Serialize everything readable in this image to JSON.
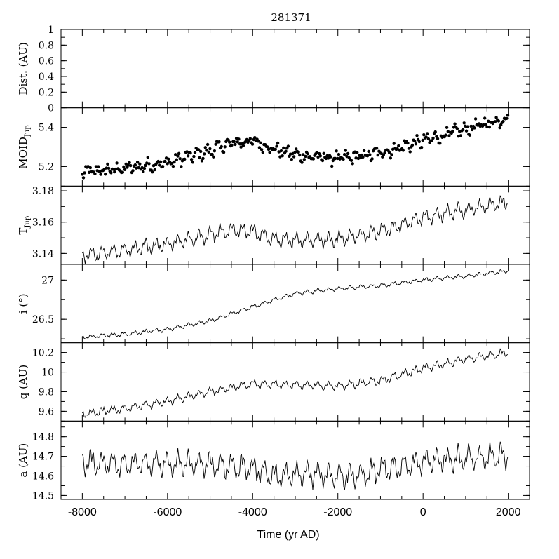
{
  "chart_data": {
    "type": "line",
    "title": "281371",
    "xlabel": "Time (yr AD)",
    "xlim": [
      -8500,
      2500
    ],
    "xticks": [
      -8000,
      -6000,
      -4000,
      -2000,
      0,
      2000
    ],
    "xtick_labels": [
      "-8000",
      "-6000",
      "-4000",
      "-2000",
      "0",
      "2000"
    ],
    "panels": [
      {
        "key": "dist",
        "ylabel": "Dist. (AU)",
        "ylim": [
          0,
          1
        ],
        "yticks": [
          0,
          0.2,
          0.4,
          0.6,
          0.8,
          1
        ],
        "ytick_labels": [
          "0",
          "0.2",
          "0.4",
          "0.6",
          "0.8",
          "1"
        ],
        "style": "none",
        "trend": []
      },
      {
        "key": "moid",
        "ylabel": "MOID",
        "ylabel_sub": "Jup",
        "ylim": [
          5.1,
          5.5
        ],
        "yticks": [
          5.2,
          5.4
        ],
        "ytick_labels": [
          "5.2",
          "5.4"
        ],
        "style": "scatter",
        "spread": 0.045,
        "trend": [
          [
            -8000,
            5.17
          ],
          [
            -7000,
            5.19
          ],
          [
            -6000,
            5.22
          ],
          [
            -5000,
            5.28
          ],
          [
            -4500,
            5.32
          ],
          [
            -4000,
            5.33
          ],
          [
            -3500,
            5.29
          ],
          [
            -3000,
            5.26
          ],
          [
            -2000,
            5.24
          ],
          [
            -1500,
            5.25
          ],
          [
            -1000,
            5.27
          ],
          [
            0,
            5.33
          ],
          [
            1000,
            5.39
          ],
          [
            2000,
            5.45
          ]
        ]
      },
      {
        "key": "tjup",
        "ylabel": "T",
        "ylabel_sub": "Jup",
        "ylim": [
          3.133,
          3.183
        ],
        "yticks": [
          3.14,
          3.16,
          3.18
        ],
        "ytick_labels": [
          "3.14",
          "3.16",
          "3.18"
        ],
        "style": "line",
        "amplitude": 0.0045,
        "trend": [
          [
            -8000,
            3.139
          ],
          [
            -7000,
            3.142
          ],
          [
            -6000,
            3.146
          ],
          [
            -5000,
            3.152
          ],
          [
            -4500,
            3.155
          ],
          [
            -4000,
            3.154
          ],
          [
            -3500,
            3.149
          ],
          [
            -3000,
            3.148
          ],
          [
            -2000,
            3.149
          ],
          [
            -1000,
            3.154
          ],
          [
            0,
            3.163
          ],
          [
            1000,
            3.168
          ],
          [
            2000,
            3.173
          ]
        ]
      },
      {
        "key": "inc",
        "ylabel": "i (°)",
        "ylim": [
          26.2,
          27.2
        ],
        "yticks": [
          26.5,
          27
        ],
        "ytick_labels": [
          "26.5",
          "27"
        ],
        "style": "line",
        "amplitude": 0.025,
        "trend": [
          [
            -8000,
            26.27
          ],
          [
            -7000,
            26.31
          ],
          [
            -6000,
            26.37
          ],
          [
            -5000,
            26.48
          ],
          [
            -4000,
            26.66
          ],
          [
            -3000,
            26.83
          ],
          [
            -2000,
            26.89
          ],
          [
            -1000,
            26.93
          ],
          [
            0,
            27.0
          ],
          [
            1000,
            27.05
          ],
          [
            2000,
            27.12
          ]
        ]
      },
      {
        "key": "q",
        "ylabel": "q (AU)",
        "ylim": [
          9.5,
          10.3
        ],
        "yticks": [
          9.6,
          9.8,
          10,
          10.2
        ],
        "ytick_labels": [
          "9.6",
          "9.8",
          "10",
          "10.2"
        ],
        "style": "line",
        "amplitude": 0.04,
        "trend": [
          [
            -8000,
            9.57
          ],
          [
            -7000,
            9.63
          ],
          [
            -6000,
            9.7
          ],
          [
            -5000,
            9.8
          ],
          [
            -4000,
            9.88
          ],
          [
            -3000,
            9.87
          ],
          [
            -2000,
            9.86
          ],
          [
            -1000,
            9.91
          ],
          [
            0,
            10.04
          ],
          [
            1000,
            10.13
          ],
          [
            2000,
            10.2
          ]
        ]
      },
      {
        "key": "a",
        "ylabel": "a (AU)",
        "ylim": [
          14.48,
          14.88
        ],
        "yticks": [
          14.5,
          14.6,
          14.7,
          14.8
        ],
        "ytick_labels": [
          "14.5",
          "14.6",
          "14.7",
          "14.8"
        ],
        "style": "line",
        "amplitude": 0.06,
        "trend": [
          [
            -8000,
            14.67
          ],
          [
            -7000,
            14.66
          ],
          [
            -6000,
            14.66
          ],
          [
            -5000,
            14.66
          ],
          [
            -4000,
            14.64
          ],
          [
            -3500,
            14.6
          ],
          [
            -2500,
            14.61
          ],
          [
            -1500,
            14.6
          ],
          [
            -1000,
            14.63
          ],
          [
            0,
            14.67
          ],
          [
            1000,
            14.69
          ],
          [
            2000,
            14.7
          ]
        ]
      }
    ]
  }
}
